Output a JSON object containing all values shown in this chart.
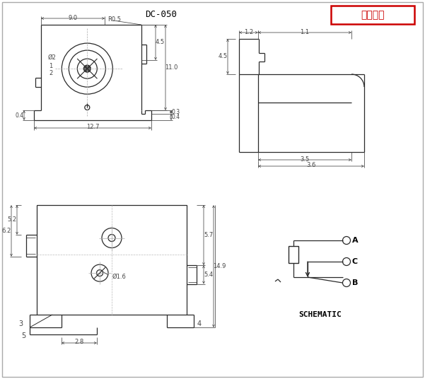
{
  "bg_color": "#f2f2f2",
  "line_color": "#2a2a2a",
  "dim_color": "#444444",
  "red_color": "#cc0000",
  "white": "#ffffff",
  "title": "DC-050",
  "stamp_text": "受控文件",
  "schematic_label": "SCHEMATIC"
}
